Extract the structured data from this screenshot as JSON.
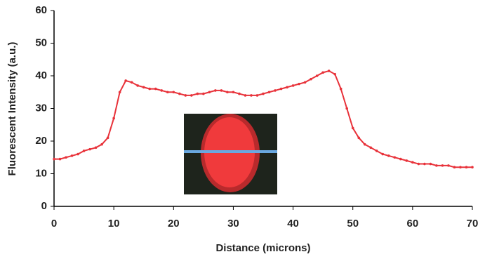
{
  "chart_data": {
    "type": "line",
    "x_label": "Distance (microns)",
    "y_label": "Fluorescent Intensity (a.u.)",
    "x": [
      0,
      1,
      2,
      3,
      4,
      5,
      6,
      7,
      8,
      9,
      10,
      11,
      12,
      13,
      14,
      15,
      16,
      17,
      18,
      19,
      20,
      21,
      22,
      23,
      24,
      25,
      26,
      27,
      28,
      29,
      30,
      31,
      32,
      33,
      34,
      35,
      36,
      37,
      38,
      39,
      40,
      41,
      42,
      43,
      44,
      45,
      46,
      47,
      48,
      49,
      50,
      51,
      52,
      53,
      54,
      55,
      56,
      57,
      58,
      59,
      60,
      61,
      62,
      63,
      64,
      65,
      66,
      67,
      68,
      69,
      70
    ],
    "series": [
      {
        "color": "#e8323a",
        "values": [
          14.5,
          14.5,
          15,
          15.5,
          16,
          17,
          17.5,
          18,
          19,
          21,
          27,
          35,
          38.5,
          38,
          37,
          36.5,
          36,
          36,
          35.5,
          35,
          35,
          34.5,
          34,
          34,
          34.5,
          34.5,
          35,
          35.5,
          35.5,
          35,
          35,
          34.5,
          34,
          34,
          34,
          34.5,
          35,
          35.5,
          36,
          36.5,
          37,
          37.5,
          38,
          39,
          40,
          41,
          41.5,
          40.5,
          36,
          30,
          24,
          21,
          19,
          18,
          17,
          16,
          15.5,
          15,
          14.5,
          14,
          13.5,
          13,
          13,
          13,
          12.5,
          12.5,
          12.5,
          12,
          12,
          12,
          12
        ]
      }
    ],
    "xlim": [
      0,
      70
    ],
    "xticks": [
      0,
      10,
      20,
      30,
      40,
      50,
      60,
      70
    ],
    "ylim": [
      0,
      60
    ],
    "yticks": [
      0,
      10,
      20,
      30,
      40,
      50,
      60
    ],
    "grid": false
  }
}
